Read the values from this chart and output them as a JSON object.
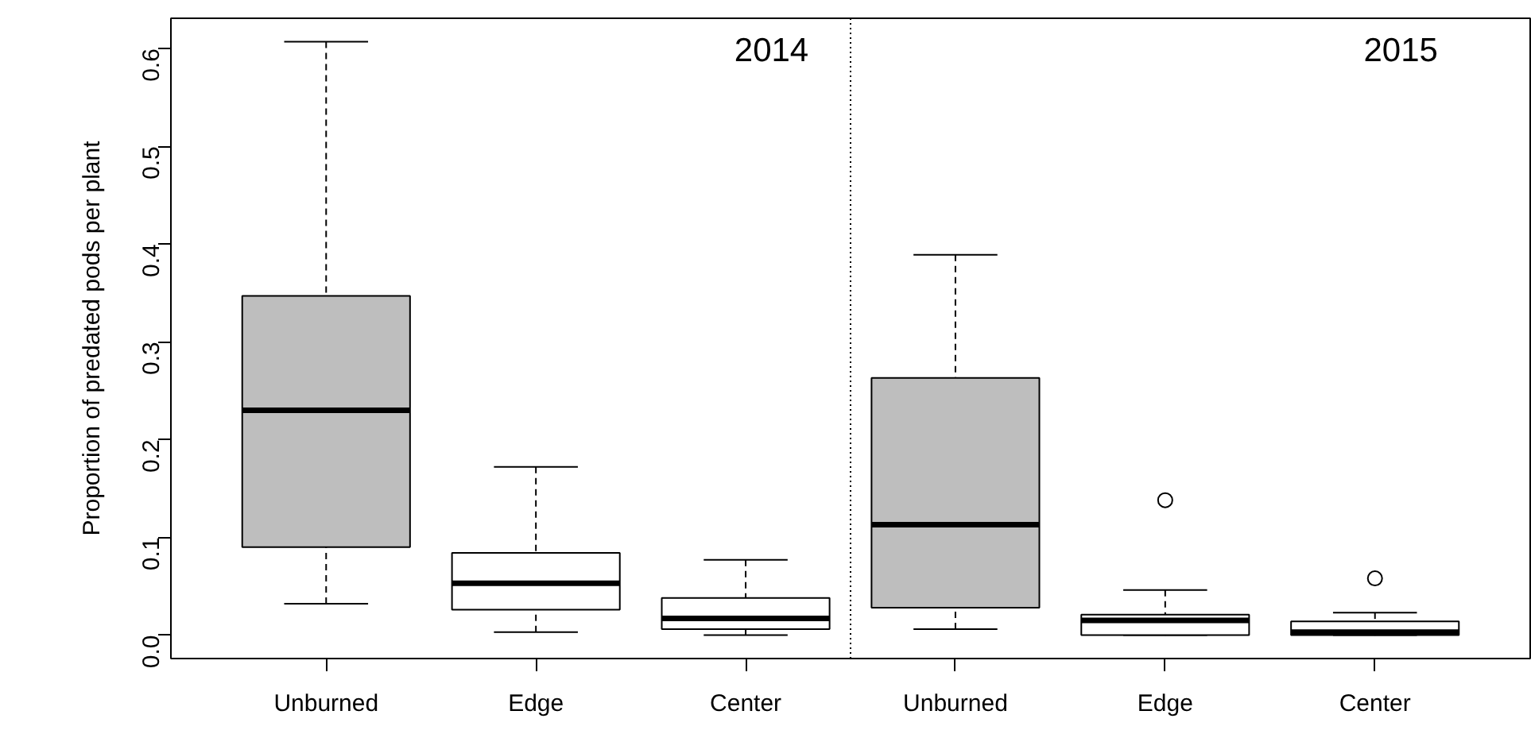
{
  "chart_data": {
    "type": "box",
    "ylabel": "Proportion of predated pods per plant",
    "categories": [
      "Unburned",
      "Edge",
      "Center",
      "Unburned",
      "Edge",
      "Center"
    ],
    "colors": [
      "#bebebe",
      "#ffffff",
      "#ffffff",
      "#bebebe",
      "#ffffff",
      "#ffffff"
    ],
    "boxes": [
      {
        "low": 0.032,
        "q1": 0.09,
        "median": 0.23,
        "q3": 0.347,
        "high": 0.607
      },
      {
        "low": 0.003,
        "q1": 0.026,
        "median": 0.053,
        "q3": 0.084,
        "high": 0.172
      },
      {
        "low": 0.0,
        "q1": 0.006,
        "median": 0.017,
        "q3": 0.038,
        "high": 0.077
      },
      {
        "low": 0.006,
        "q1": 0.028,
        "median": 0.113,
        "q3": 0.263,
        "high": 0.389
      },
      {
        "low": 0.0,
        "q1": 0.0,
        "median": 0.015,
        "q3": 0.021,
        "high": 0.046,
        "outliers": [
          0.138
        ]
      },
      {
        "low": 0.0,
        "q1": 0.0,
        "median": 0.003,
        "q3": 0.014,
        "high": 0.023,
        "outliers": [
          0.058
        ]
      }
    ],
    "ylim": [
      -0.024,
      0.631
    ],
    "yticks": [
      {
        "value": 0,
        "label": "0.0"
      },
      0.1,
      0.2,
      0.3,
      0.4,
      0.5,
      0.6
    ],
    "annotations": [
      "2014",
      "2015"
    ],
    "grid": false
  }
}
